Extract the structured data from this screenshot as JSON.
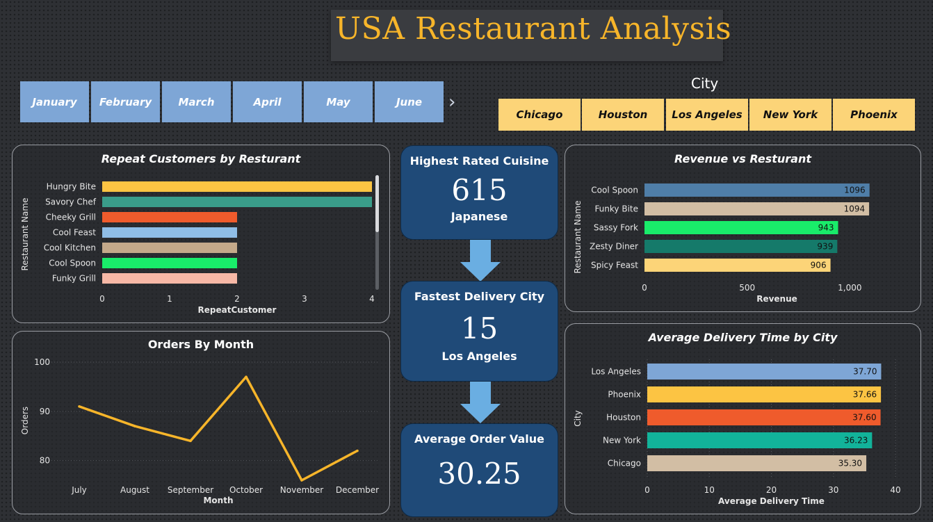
{
  "header": {
    "title": "USA Restaurant Analysis"
  },
  "month_slicer": {
    "items": [
      "January",
      "February",
      "March",
      "April",
      "May",
      "June"
    ],
    "more_icon": "chevron-right-icon"
  },
  "city_slicer": {
    "title": "City",
    "items": [
      "Chicago",
      "Houston",
      "Los Angeles",
      "New York",
      "Phoenix"
    ]
  },
  "kpis": {
    "cuisine": {
      "title": "Highest Rated Cuisine",
      "value": "615",
      "sub": "Japanese"
    },
    "delivery": {
      "title": "Fastest Delivery City",
      "value": "15",
      "sub": "Los Angeles"
    },
    "order": {
      "title": "Average Order Value",
      "value": "30.25"
    }
  },
  "colors": {
    "accent": "#f7b52a",
    "kpi_bg": "#1f4a78",
    "month_btn": "#7ea6d6",
    "city_btn": "#fcd478"
  },
  "chart_data": [
    {
      "id": "repeat",
      "type": "bar",
      "orientation": "horizontal",
      "title": "Repeat Customers by Resturant",
      "xlabel": "RepeatCustomer",
      "ylabel": "Restaurant Name",
      "categories": [
        "Hungry Bite",
        "Savory Chef",
        "Cheeky Grill",
        "Cool Feast",
        "Cool Kitchen",
        "Cool Spoon",
        "Funky Grill"
      ],
      "values": [
        4,
        4,
        2,
        2,
        2,
        2,
        2
      ],
      "colors": [
        "#fcc443",
        "#3a9d8a",
        "#ef5b2c",
        "#8fbde6",
        "#c4a98a",
        "#19ec6a",
        "#f7b8a6"
      ],
      "xlim": [
        0,
        4
      ],
      "xticks": [
        "0",
        "1",
        "2",
        "3",
        "4"
      ]
    },
    {
      "id": "revenue",
      "type": "bar",
      "orientation": "horizontal",
      "title": "Revenue vs Resturant",
      "xlabel": "Revenue",
      "ylabel": "Restaurant Name",
      "categories": [
        "Cool Spoon",
        "Funky Bite",
        "Sassy Fork",
        "Zesty Diner",
        "Spicy Feast"
      ],
      "values": [
        1096,
        1094,
        943,
        939,
        906
      ],
      "data_labels": [
        "1096",
        "1094",
        "943",
        "939",
        "906"
      ],
      "colors": [
        "#4f7ea8",
        "#d2bea4",
        "#19ec6a",
        "#157a6a",
        "#fcd478"
      ],
      "xlim": [
        0,
        1290
      ],
      "xtick_values": [
        0,
        500,
        1000
      ],
      "xticks": [
        "0",
        "500",
        "1,000"
      ]
    },
    {
      "id": "orders",
      "type": "line",
      "title": "Orders By Month",
      "xlabel": "Month",
      "ylabel": "Orders",
      "categories": [
        "July",
        "August",
        "September",
        "October",
        "November",
        "December"
      ],
      "values": [
        91,
        87,
        84,
        97,
        76,
        82
      ],
      "color": "#f7b52a",
      "ylim": [
        76,
        100
      ],
      "ytick_values": [
        80,
        90,
        100
      ],
      "yticks": [
        "80",
        "90",
        "100"
      ]
    },
    {
      "id": "delivery",
      "type": "bar",
      "orientation": "horizontal",
      "title": "Average Delivery Time by City",
      "xlabel": "Average Delivery Time",
      "ylabel": "City",
      "categories": [
        "Los Angeles",
        "Phoenix",
        "Houston",
        "New York",
        "Chicago"
      ],
      "values": [
        37.7,
        37.66,
        37.6,
        36.23,
        35.3
      ],
      "data_labels": [
        "37.70",
        "37.66",
        "37.60",
        "36.23",
        "35.30"
      ],
      "colors": [
        "#7ea6d6",
        "#fcc443",
        "#ef5b2c",
        "#12b39a",
        "#d2bea4"
      ],
      "xlim": [
        0,
        40
      ],
      "xtick_values": [
        0,
        10,
        20,
        30,
        40
      ],
      "xticks": [
        "0",
        "10",
        "20",
        "30",
        "40"
      ]
    }
  ]
}
